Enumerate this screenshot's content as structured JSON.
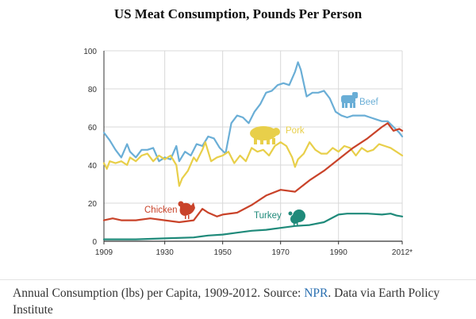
{
  "colors": {
    "beef": "#6aaed6",
    "pork": "#e8cf4a",
    "chicken": "#c9432a",
    "turkey": "#1f8a7a",
    "axis": "#333333",
    "grid": "#d8d8d8"
  },
  "chart_data": {
    "type": "line",
    "title": "US Meat Consumption, Pounds Per Person",
    "xlabel": "",
    "ylabel": "",
    "xlim": [
      1909,
      2012
    ],
    "ylim": [
      0,
      100
    ],
    "x_ticks": [
      {
        "value": 1909,
        "label": "1909"
      },
      {
        "value": 1930,
        "label": "1930"
      },
      {
        "value": 1950,
        "label": "1950"
      },
      {
        "value": 1970,
        "label": "1970"
      },
      {
        "value": 1990,
        "label": "1990"
      },
      {
        "value": 2012,
        "label": "2012*"
      }
    ],
    "y_ticks": [
      0,
      20,
      40,
      60,
      80,
      100
    ],
    "grid": true,
    "series": [
      {
        "name": "Beef",
        "key": "beef",
        "icon": "cow-icon",
        "points": [
          [
            1909,
            57
          ],
          [
            1911,
            53
          ],
          [
            1913,
            48
          ],
          [
            1915,
            44
          ],
          [
            1917,
            51
          ],
          [
            1918,
            47
          ],
          [
            1920,
            44
          ],
          [
            1922,
            48
          ],
          [
            1924,
            48
          ],
          [
            1926,
            49
          ],
          [
            1928,
            42
          ],
          [
            1930,
            44
          ],
          [
            1932,
            43
          ],
          [
            1934,
            50
          ],
          [
            1935,
            42
          ],
          [
            1937,
            47
          ],
          [
            1939,
            45
          ],
          [
            1941,
            51
          ],
          [
            1943,
            50
          ],
          [
            1945,
            55
          ],
          [
            1947,
            54
          ],
          [
            1949,
            49
          ],
          [
            1951,
            46
          ],
          [
            1953,
            62
          ],
          [
            1955,
            66
          ],
          [
            1957,
            65
          ],
          [
            1959,
            62
          ],
          [
            1961,
            68
          ],
          [
            1963,
            72
          ],
          [
            1965,
            78
          ],
          [
            1967,
            79
          ],
          [
            1969,
            82
          ],
          [
            1971,
            83
          ],
          [
            1973,
            82
          ],
          [
            1975,
            89
          ],
          [
            1976,
            94
          ],
          [
            1977,
            90
          ],
          [
            1979,
            76
          ],
          [
            1981,
            78
          ],
          [
            1983,
            78
          ],
          [
            1985,
            79
          ],
          [
            1987,
            75
          ],
          [
            1989,
            68
          ],
          [
            1991,
            66
          ],
          [
            1993,
            65
          ],
          [
            1995,
            66
          ],
          [
            1997,
            66
          ],
          [
            1999,
            66
          ],
          [
            2001,
            65
          ],
          [
            2003,
            64
          ],
          [
            2005,
            63
          ],
          [
            2007,
            63
          ],
          [
            2009,
            60
          ],
          [
            2011,
            57
          ],
          [
            2012,
            55
          ]
        ]
      },
      {
        "name": "Pork",
        "key": "pork",
        "icon": "pig-icon",
        "points": [
          [
            1909,
            41
          ],
          [
            1910,
            38
          ],
          [
            1911,
            42
          ],
          [
            1913,
            41
          ],
          [
            1915,
            42
          ],
          [
            1917,
            40
          ],
          [
            1918,
            44
          ],
          [
            1920,
            42
          ],
          [
            1922,
            45
          ],
          [
            1924,
            46
          ],
          [
            1926,
            42
          ],
          [
            1928,
            45
          ],
          [
            1930,
            43
          ],
          [
            1932,
            45
          ],
          [
            1934,
            40
          ],
          [
            1935,
            29
          ],
          [
            1936,
            33
          ],
          [
            1938,
            37
          ],
          [
            1940,
            44
          ],
          [
            1941,
            42
          ],
          [
            1943,
            48
          ],
          [
            1944,
            52
          ],
          [
            1946,
            42
          ],
          [
            1948,
            44
          ],
          [
            1950,
            45
          ],
          [
            1952,
            47
          ],
          [
            1954,
            41
          ],
          [
            1956,
            45
          ],
          [
            1958,
            42
          ],
          [
            1960,
            49
          ],
          [
            1962,
            47
          ],
          [
            1964,
            48
          ],
          [
            1966,
            45
          ],
          [
            1968,
            50
          ],
          [
            1970,
            52
          ],
          [
            1972,
            50
          ],
          [
            1974,
            44
          ],
          [
            1975,
            39
          ],
          [
            1976,
            43
          ],
          [
            1978,
            46
          ],
          [
            1980,
            52
          ],
          [
            1982,
            48
          ],
          [
            1984,
            46
          ],
          [
            1986,
            46
          ],
          [
            1988,
            49
          ],
          [
            1990,
            47
          ],
          [
            1992,
            50
          ],
          [
            1994,
            49
          ],
          [
            1996,
            45
          ],
          [
            1998,
            49
          ],
          [
            2000,
            47
          ],
          [
            2002,
            48
          ],
          [
            2004,
            51
          ],
          [
            2006,
            50
          ],
          [
            2008,
            49
          ],
          [
            2010,
            47
          ],
          [
            2012,
            45
          ]
        ]
      },
      {
        "name": "Chicken",
        "key": "chicken",
        "icon": "hen-icon",
        "points": [
          [
            1909,
            11
          ],
          [
            1912,
            12
          ],
          [
            1915,
            11
          ],
          [
            1920,
            11
          ],
          [
            1925,
            12
          ],
          [
            1930,
            11
          ],
          [
            1935,
            10
          ],
          [
            1940,
            11
          ],
          [
            1943,
            17
          ],
          [
            1945,
            15
          ],
          [
            1948,
            13
          ],
          [
            1950,
            14
          ],
          [
            1955,
            15
          ],
          [
            1960,
            19
          ],
          [
            1965,
            24
          ],
          [
            1970,
            27
          ],
          [
            1975,
            26
          ],
          [
            1980,
            32
          ],
          [
            1985,
            37
          ],
          [
            1990,
            43
          ],
          [
            1995,
            49
          ],
          [
            2000,
            54
          ],
          [
            2005,
            60
          ],
          [
            2007,
            62
          ],
          [
            2009,
            58
          ],
          [
            2011,
            59
          ],
          [
            2012,
            58
          ]
        ]
      },
      {
        "name": "Turkey",
        "key": "turkey",
        "icon": "turkey-icon",
        "points": [
          [
            1909,
            1
          ],
          [
            1920,
            1
          ],
          [
            1930,
            1.5
          ],
          [
            1940,
            2
          ],
          [
            1945,
            3
          ],
          [
            1950,
            3.5
          ],
          [
            1955,
            4.5
          ],
          [
            1960,
            5.5
          ],
          [
            1965,
            6
          ],
          [
            1970,
            7
          ],
          [
            1975,
            8
          ],
          [
            1980,
            8.5
          ],
          [
            1985,
            10
          ],
          [
            1990,
            14
          ],
          [
            1993,
            14.5
          ],
          [
            2000,
            14.5
          ],
          [
            2005,
            14
          ],
          [
            2008,
            14.5
          ],
          [
            2010,
            13.5
          ],
          [
            2012,
            13
          ]
        ]
      }
    ],
    "labels": {
      "beef": "Beef",
      "pork": "Pork",
      "chicken": "Chicken",
      "turkey": "Turkey"
    }
  },
  "caption": {
    "prefix": "Annual Consumption (lbs) per Capita, 1909-2012. Source: ",
    "source": "NPR",
    "suffix": ". Data via Earth Policy Institute"
  }
}
